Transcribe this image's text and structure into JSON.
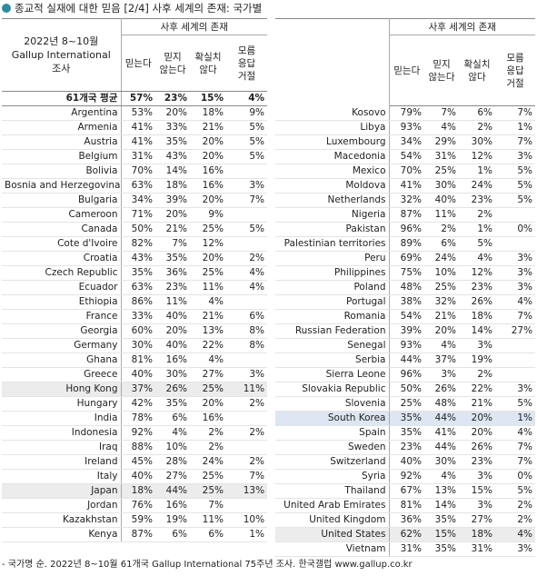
{
  "title": "종교적 실재에 대한 믿음 [2/4] 사후 세계의 존재: 국가별",
  "left": {
    "corner": [
      "2022년 8~10월",
      "Gallup International",
      "조사"
    ],
    "group_header": "사후 세계의 존재",
    "columns": [
      [
        "믿는다"
      ],
      [
        "믿지",
        "않는다"
      ],
      [
        "확실치",
        "않다"
      ],
      [
        "모름",
        "응답",
        "거절"
      ]
    ],
    "rows": [
      [
        "61개국 평균",
        "57%",
        "23%",
        "15%",
        "4%"
      ],
      [
        "Argentina",
        "53%",
        "20%",
        "18%",
        "9%"
      ],
      [
        "Armenia",
        "41%",
        "33%",
        "21%",
        "5%"
      ],
      [
        "Austria",
        "41%",
        "35%",
        "20%",
        "5%"
      ],
      [
        "Belgium",
        "31%",
        "43%",
        "20%",
        "5%"
      ],
      [
        "Bolivia",
        "70%",
        "14%",
        "16%",
        null
      ],
      [
        "Bosnia and Herzegovina",
        "63%",
        "18%",
        "16%",
        "3%"
      ],
      [
        "Bulgaria",
        "34%",
        "39%",
        "20%",
        "7%"
      ],
      [
        "Cameroon",
        "71%",
        "20%",
        "9%",
        null
      ],
      [
        "Canada",
        "50%",
        "21%",
        "25%",
        "5%"
      ],
      [
        "Cote d'Ivoire",
        "82%",
        "7%",
        "12%",
        null
      ],
      [
        "Croatia",
        "43%",
        "35%",
        "20%",
        "2%"
      ],
      [
        "Czech Republic",
        "35%",
        "36%",
        "25%",
        "4%"
      ],
      [
        "Ecuador",
        "63%",
        "23%",
        "11%",
        "4%"
      ],
      [
        "Ethiopia",
        "86%",
        "11%",
        "4%",
        null
      ],
      [
        "France",
        "33%",
        "40%",
        "21%",
        "6%"
      ],
      [
        "Georgia",
        "60%",
        "20%",
        "13%",
        "8%"
      ],
      [
        "Germany",
        "30%",
        "40%",
        "22%",
        "8%"
      ],
      [
        "Ghana",
        "81%",
        "16%",
        "4%",
        null
      ],
      [
        "Greece",
        "40%",
        "30%",
        "27%",
        "3%"
      ],
      [
        "Hong Kong",
        "37%",
        "26%",
        "25%",
        "11%"
      ],
      [
        "Hungary",
        "42%",
        "35%",
        "20%",
        "2%"
      ],
      [
        "India",
        "78%",
        "6%",
        "16%",
        null
      ],
      [
        "Indonesia",
        "92%",
        "4%",
        "2%",
        "2%"
      ],
      [
        "Iraq",
        "88%",
        "10%",
        "2%",
        null
      ],
      [
        "Ireland",
        "45%",
        "28%",
        "24%",
        "2%"
      ],
      [
        "Italy",
        "40%",
        "27%",
        "25%",
        "7%"
      ],
      [
        "Japan",
        "18%",
        "44%",
        "25%",
        "13%"
      ],
      [
        "Jordan",
        "76%",
        "16%",
        "7%",
        null
      ],
      [
        "Kazakhstan",
        "59%",
        "19%",
        "11%",
        "10%"
      ],
      [
        "Kenya",
        "87%",
        "6%",
        "6%",
        "1%"
      ]
    ]
  },
  "right": {
    "group_header": "사후 세계의 존재",
    "columns": [
      [
        "믿는다"
      ],
      [
        "믿지",
        "않는다"
      ],
      [
        "확실치",
        "않다"
      ],
      [
        "모름",
        "응답",
        "거절"
      ]
    ],
    "rows": [
      [
        "Kosovo",
        "79%",
        "7%",
        "6%",
        "7%"
      ],
      [
        "Libya",
        "93%",
        "4%",
        "2%",
        "1%"
      ],
      [
        "Luxembourg",
        "34%",
        "29%",
        "30%",
        "7%"
      ],
      [
        "Macedonia",
        "54%",
        "31%",
        "12%",
        "3%"
      ],
      [
        "Mexico",
        "70%",
        "25%",
        "1%",
        "5%"
      ],
      [
        "Moldova",
        "41%",
        "30%",
        "24%",
        "5%"
      ],
      [
        "Netherlands",
        "32%",
        "40%",
        "23%",
        "5%"
      ],
      [
        "Nigeria",
        "87%",
        "11%",
        "2%",
        null
      ],
      [
        "Pakistan",
        "96%",
        "2%",
        "1%",
        "0%"
      ],
      [
        "Palestinian territories",
        "89%",
        "6%",
        "5%",
        null
      ],
      [
        "Peru",
        "69%",
        "24%",
        "4%",
        "3%"
      ],
      [
        "Philippines",
        "75%",
        "10%",
        "12%",
        "3%"
      ],
      [
        "Poland",
        "48%",
        "25%",
        "23%",
        "3%"
      ],
      [
        "Portugal",
        "38%",
        "32%",
        "26%",
        "4%"
      ],
      [
        "Romania",
        "54%",
        "21%",
        "18%",
        "7%"
      ],
      [
        "Russian Federation",
        "39%",
        "20%",
        "14%",
        "27%"
      ],
      [
        "Senegal",
        "93%",
        "4%",
        "3%",
        null
      ],
      [
        "Serbia",
        "44%",
        "37%",
        "19%",
        null
      ],
      [
        "Sierra Leone",
        "96%",
        "3%",
        "2%",
        null
      ],
      [
        "Slovakia Republic",
        "50%",
        "26%",
        "22%",
        "3%"
      ],
      [
        "Slovenia",
        "25%",
        "48%",
        "21%",
        "5%"
      ],
      [
        "South Korea",
        "35%",
        "44%",
        "20%",
        "1%"
      ],
      [
        "Spain",
        "35%",
        "41%",
        "20%",
        "4%"
      ],
      [
        "Sweden",
        "23%",
        "44%",
        "26%",
        "7%"
      ],
      [
        "Switzerland",
        "40%",
        "30%",
        "23%",
        "7%"
      ],
      [
        "Syria",
        "92%",
        "4%",
        "3%",
        "0%"
      ],
      [
        "Thailand",
        "67%",
        "13%",
        "15%",
        "5%"
      ],
      [
        "United Arab Emirates",
        "81%",
        "14%",
        "3%",
        "2%"
      ],
      [
        "United Kingdom",
        "36%",
        "35%",
        "27%",
        "2%"
      ],
      [
        "United States",
        "62%",
        "15%",
        "18%",
        "4%"
      ],
      [
        "Vietnam",
        "31%",
        "35%",
        "31%",
        "3%"
      ]
    ]
  },
  "footer": "- 국가명 순. 2022년 8~10월 61개국 Gallup International 75주년 조사. 한국갤럽 www.gallup.co.kr"
}
